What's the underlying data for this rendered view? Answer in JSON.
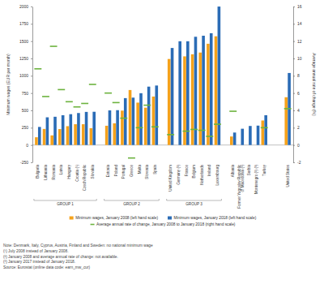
{
  "chart_data": {
    "type": "bar",
    "categories": [
      "Bulgaria",
      "Lithuania",
      "Romania",
      "Latvia",
      "Hungary",
      "Croatia (¹)",
      "Czech Republic",
      "Slovakia",
      null,
      "Estonia",
      "Poland",
      "Portugal",
      "Greece",
      "Malta",
      "Slovenia",
      "Spain",
      null,
      "United Kingdom",
      "Germany (²)",
      "France",
      "Belgium",
      "Netherlands",
      "Ireland",
      "Luxembourg",
      null,
      "Albania",
      "Former Yugoslav Republic of Macedonia (²)",
      "Serbia",
      "Montenegro (²) (³)",
      "Turkey",
      null,
      null,
      "United States"
    ],
    "series": [
      {
        "name": "Minimum wages, January 2008 (left hand scale)",
        "type": "bar",
        "color": "#f5a21b",
        "values": [
          112,
          232,
          139,
          230,
          272,
          300,
          300,
          243,
          null,
          278,
          313,
          497,
          794,
          612,
          539,
          700,
          null,
          1242,
          null,
          1280,
          1310,
          1335,
          1462,
          1570,
          null,
          123,
          null,
          null,
          null,
          354,
          null,
          null,
          690
        ]
      },
      {
        "name": "Minimum wages, January 2018 (left hand scale)",
        "type": "bar",
        "color": "#2b6cb6",
        "values": [
          261,
          400,
          408,
          430,
          445,
          462,
          478,
          480,
          null,
          500,
          503,
          677,
          684,
          748,
          843,
          859,
          null,
          1401,
          1498,
          1498,
          1563,
          1578,
          1614,
          1999,
          null,
          180,
          235,
          275,
          280,
          430,
          null,
          null,
          1040
        ]
      },
      {
        "name": "Average annual rate of change, January 2008 to January 2018 (right hand scale)",
        "type": "scatter",
        "marker": "dash",
        "axis": "y2",
        "color": "#6db33f",
        "values": [
          8.8,
          5.6,
          11.4,
          6.4,
          5.0,
          4.4,
          4.8,
          7.0,
          null,
          6.0,
          4.9,
          3.1,
          -1.5,
          2.0,
          4.6,
          2.1,
          null,
          1.2,
          null,
          1.6,
          1.8,
          1.7,
          1.0,
          2.4,
          null,
          3.9,
          null,
          null,
          null,
          2.0,
          null,
          null,
          4.2
        ]
      }
    ],
    "ylim": [
      -250,
      2000
    ],
    "yticks": [
      -250,
      0,
      250,
      500,
      750,
      1000,
      1250,
      1500,
      1750,
      2000
    ],
    "y2lim": [
      -2,
      16
    ],
    "y2ticks": [
      -2,
      0,
      2,
      4,
      6,
      8,
      10,
      12,
      14,
      16
    ],
    "y_label": "Minimum wages (EUR per month)",
    "y2_label": "Average annual rate of change (%)",
    "grid": false,
    "legend": "bottom",
    "annotations": [
      {
        "text": "GROUP 1",
        "from": "Bulgaria",
        "to": "Slovakia"
      },
      {
        "text": "GROUP 2",
        "from": "Estonia",
        "to": "Spain"
      },
      {
        "text": "GROUP 3",
        "from": "United Kingdom",
        "to": "Luxembourg"
      }
    ],
    "notes": [
      "Note: Denmark, Italy, Cyprus, Austria, Finland and Sweden: no national minimum wage",
      "(¹) July 2008 instead of January 2008.",
      "(²) January 2008 and average annual rate of change: not available.",
      "(³) January 2017 instead of January 2018.",
      "Source: Eurostat (online data code: earn_mw_cur)"
    ]
  }
}
